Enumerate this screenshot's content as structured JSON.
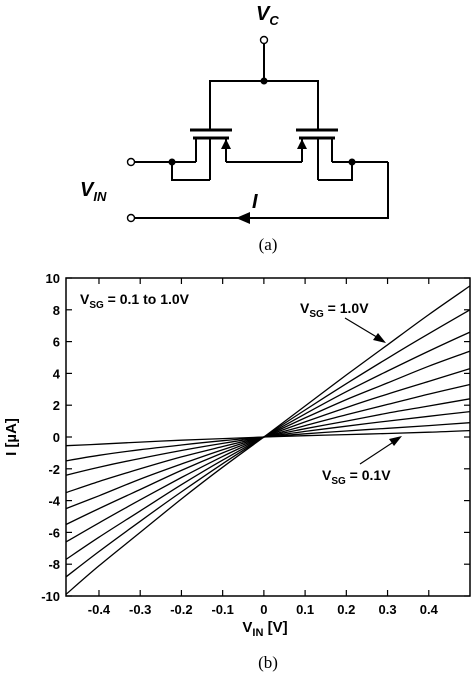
{
  "figure_a": {
    "caption": "(a)",
    "labels": {
      "vc_main": "V",
      "vc_sub": "C",
      "vin_main": "V",
      "vin_sub": "IN",
      "current": "I"
    }
  },
  "figure_b": {
    "caption": "(b)"
  },
  "chart_data": {
    "type": "line",
    "title": "",
    "xlabel_main": "V",
    "xlabel_sub": "IN",
    "xlabel_unit": " [V]",
    "ylabel": "I [µA]",
    "xlim": [
      -0.48,
      0.5
    ],
    "ylim": [
      -10,
      10
    ],
    "xticks": [
      -0.4,
      -0.3,
      -0.2,
      -0.1,
      0,
      0.1,
      0.2,
      0.3,
      0.4
    ],
    "xtick_labels": [
      "-0.4",
      "-0.3",
      "-0.2",
      "-0.1",
      "0",
      "0.1",
      "0.2",
      "0.3",
      "0.4"
    ],
    "yticks": [
      -10,
      -8,
      -6,
      -4,
      -2,
      0,
      2,
      4,
      6,
      8,
      10
    ],
    "ytick_labels": [
      "-10",
      "-8",
      "-6",
      "-4",
      "-2",
      "0",
      "2",
      "4",
      "6",
      "8",
      "10"
    ],
    "grid": false,
    "annotations": {
      "range": {
        "pre": "V",
        "sub": "SG",
        "post": " = 0.1 to 1.0V"
      },
      "top": {
        "pre": "V",
        "sub": "SG",
        "post": " = 1.0V"
      },
      "bottom": {
        "pre": "V",
        "sub": "SG",
        "post": " = 0.1V"
      }
    },
    "series": [
      {
        "values": [
          [
            -0.48,
            -0.55
          ],
          [
            -0.4,
            -0.45
          ],
          [
            -0.3,
            -0.32
          ],
          [
            -0.2,
            -0.2
          ],
          [
            -0.1,
            -0.1
          ],
          [
            0,
            0
          ],
          [
            0.1,
            0.08
          ],
          [
            0.2,
            0.15
          ],
          [
            0.3,
            0.22
          ],
          [
            0.4,
            0.3
          ],
          [
            0.5,
            0.4
          ]
        ]
      },
      {
        "values": [
          [
            -0.48,
            -1.5
          ],
          [
            -0.4,
            -1.15
          ],
          [
            -0.3,
            -0.8
          ],
          [
            -0.2,
            -0.5
          ],
          [
            -0.1,
            -0.23
          ],
          [
            0,
            0
          ],
          [
            0.1,
            0.2
          ],
          [
            0.2,
            0.38
          ],
          [
            0.3,
            0.55
          ],
          [
            0.4,
            0.72
          ],
          [
            0.5,
            0.9
          ]
        ]
      },
      {
        "values": [
          [
            -0.48,
            -2.4
          ],
          [
            -0.4,
            -1.9
          ],
          [
            -0.3,
            -1.35
          ],
          [
            -0.2,
            -0.85
          ],
          [
            -0.1,
            -0.4
          ],
          [
            0,
            0
          ],
          [
            0.1,
            0.35
          ],
          [
            0.2,
            0.68
          ],
          [
            0.3,
            1.0
          ],
          [
            0.4,
            1.3
          ],
          [
            0.5,
            1.6
          ]
        ]
      },
      {
        "values": [
          [
            -0.48,
            -3.5
          ],
          [
            -0.4,
            -2.8
          ],
          [
            -0.3,
            -2.0
          ],
          [
            -0.2,
            -1.25
          ],
          [
            -0.1,
            -0.6
          ],
          [
            0,
            0
          ],
          [
            0.1,
            0.52
          ],
          [
            0.2,
            1.0
          ],
          [
            0.3,
            1.5
          ],
          [
            0.4,
            1.95
          ],
          [
            0.5,
            2.4
          ]
        ]
      },
      {
        "values": [
          [
            -0.48,
            -4.5
          ],
          [
            -0.4,
            -3.7
          ],
          [
            -0.3,
            -2.65
          ],
          [
            -0.2,
            -1.7
          ],
          [
            -0.1,
            -0.8
          ],
          [
            0,
            0
          ],
          [
            0.1,
            0.72
          ],
          [
            0.2,
            1.4
          ],
          [
            0.3,
            2.05
          ],
          [
            0.4,
            2.7
          ],
          [
            0.5,
            3.3
          ]
        ]
      },
      {
        "values": [
          [
            -0.48,
            -5.5
          ],
          [
            -0.4,
            -4.5
          ],
          [
            -0.3,
            -3.3
          ],
          [
            -0.2,
            -2.1
          ],
          [
            -0.1,
            -1.0
          ],
          [
            0,
            0
          ],
          [
            0.1,
            0.95
          ],
          [
            0.2,
            1.85
          ],
          [
            0.3,
            2.7
          ],
          [
            0.4,
            3.5
          ],
          [
            0.5,
            4.3
          ]
        ]
      },
      {
        "values": [
          [
            -0.48,
            -6.6
          ],
          [
            -0.4,
            -5.4
          ],
          [
            -0.3,
            -3.95
          ],
          [
            -0.2,
            -2.55
          ],
          [
            -0.1,
            -1.22
          ],
          [
            0,
            0
          ],
          [
            0.1,
            1.2
          ],
          [
            0.2,
            2.35
          ],
          [
            0.3,
            3.4
          ],
          [
            0.4,
            4.45
          ],
          [
            0.5,
            5.4
          ]
        ]
      },
      {
        "values": [
          [
            -0.48,
            -7.7
          ],
          [
            -0.4,
            -6.3
          ],
          [
            -0.3,
            -4.65
          ],
          [
            -0.2,
            -3.0
          ],
          [
            -0.1,
            -1.45
          ],
          [
            0,
            0
          ],
          [
            0.1,
            1.45
          ],
          [
            0.2,
            2.85
          ],
          [
            0.3,
            4.15
          ],
          [
            0.4,
            5.4
          ],
          [
            0.5,
            6.6
          ]
        ]
      },
      {
        "values": [
          [
            -0.48,
            -8.8
          ],
          [
            -0.4,
            -7.2
          ],
          [
            -0.3,
            -5.3
          ],
          [
            -0.2,
            -3.45
          ],
          [
            -0.1,
            -1.68
          ],
          [
            0,
            0
          ],
          [
            0.1,
            1.7
          ],
          [
            0.2,
            3.35
          ],
          [
            0.3,
            4.95
          ],
          [
            0.4,
            6.5
          ],
          [
            0.5,
            8.0
          ]
        ]
      },
      {
        "values": [
          [
            -0.48,
            -9.9
          ],
          [
            -0.4,
            -8.1
          ],
          [
            -0.3,
            -6.0
          ],
          [
            -0.2,
            -3.9
          ],
          [
            -0.1,
            -1.9
          ],
          [
            0,
            0
          ],
          [
            0.1,
            1.95
          ],
          [
            0.2,
            3.9
          ],
          [
            0.3,
            5.8
          ],
          [
            0.4,
            7.7
          ],
          [
            0.5,
            9.5
          ]
        ]
      }
    ]
  }
}
